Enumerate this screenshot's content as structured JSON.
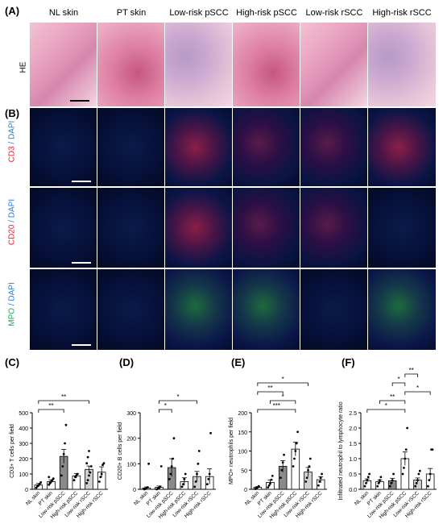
{
  "panels": {
    "A": "(A)",
    "B": "(B)",
    "C": "(C)",
    "D": "(D)",
    "E": "(E)",
    "F": "(F)"
  },
  "columns": [
    "NL skin",
    "PT skin",
    "Low-risk pSCC",
    "High-risk pSCC",
    "Low-risk rSCC",
    "High-risk rSCC"
  ],
  "row_labels": {
    "he": "HE",
    "cd3_a": "CD3",
    "cd3_b": " / DAPI",
    "cd20_a": "CD20",
    "cd20_b": " / DAPI",
    "mpo_a": "MPO",
    "mpo_b": " / DAPI"
  },
  "colors": {
    "cd3": "#e0202a",
    "cd20": "#e0202a",
    "mpo": "#1aa54a",
    "dapi": "#2a78d8",
    "bar_light": "#ffffff",
    "bar_mid": "#cfcfcf",
    "bar_dark": "#8a8a8a"
  },
  "chart_data": [
    {
      "type": "bar",
      "panel": "C",
      "ylabel": "CD3+ T cells per field",
      "categories": [
        "NL skin",
        "PT skin",
        "Low-risk pSCC",
        "High-risk pSCC",
        "Low-risk rSCC",
        "High-risk rSCC"
      ],
      "values": [
        28,
        50,
        215,
        88,
        130,
        112
      ],
      "errors": [
        10,
        12,
        45,
        15,
        22,
        35
      ],
      "ylim": [
        0,
        500
      ],
      "yticks": [
        0,
        100,
        200,
        300,
        400,
        500
      ],
      "points": [
        [
          10,
          20,
          25,
          35,
          45
        ],
        [
          30,
          40,
          50,
          60,
          70,
          80,
          45
        ],
        [
          90,
          150,
          230,
          300,
          420
        ],
        [
          60,
          80,
          90,
          100
        ],
        [
          40,
          60,
          90,
          110,
          150,
          170,
          210,
          250
        ],
        [
          50,
          80,
          100,
          160,
          170
        ]
      ],
      "significance": [
        {
          "from": 0,
          "to": 2,
          "label": "**"
        },
        {
          "from": 0,
          "to": 4,
          "label": "**"
        }
      ]
    },
    {
      "type": "bar",
      "panel": "D",
      "ylabel": "CD20+ B cells per field",
      "categories": [
        "NL skin",
        "PT skin",
        "Low-risk pSCC",
        "High-risk pSCC",
        "Low-risk rSCC",
        "High-risk rSCC"
      ],
      "values": [
        5,
        8,
        85,
        30,
        50,
        50
      ],
      "errors": [
        4,
        5,
        35,
        15,
        20,
        30
      ],
      "ylim": [
        0,
        300
      ],
      "yticks": [
        0,
        100,
        200,
        300
      ],
      "points": [
        [
          0,
          2,
          5,
          8,
          100
        ],
        [
          0,
          3,
          5,
          10,
          90
        ],
        [
          40,
          60,
          90,
          120,
          200
        ],
        [
          10,
          20,
          40,
          60
        ],
        [
          10,
          30,
          60,
          100,
          150
        ],
        [
          20,
          40,
          60,
          220
        ]
      ],
      "significance": [
        {
          "from": 1,
          "to": 2,
          "label": "*"
        },
        {
          "from": 1,
          "to": 4,
          "label": "*"
        }
      ]
    },
    {
      "type": "bar",
      "panel": "E",
      "ylabel": "MPO+ neutrophils per field",
      "categories": [
        "NL skin",
        "PT skin",
        "Low-risk pSCC",
        "High-risk pSCC",
        "Low-risk rSCC",
        "High-risk rSCC"
      ],
      "values": [
        5,
        18,
        60,
        105,
        45,
        25
      ],
      "errors": [
        2,
        6,
        15,
        18,
        12,
        8
      ],
      "ylim": [
        0,
        200
      ],
      "yticks": [
        0,
        50,
        100,
        150,
        200
      ],
      "points": [
        [
          1,
          3,
          5,
          8
        ],
        [
          5,
          10,
          15,
          25,
          35
        ],
        [
          30,
          50,
          70,
          90
        ],
        [
          60,
          80,
          100,
          120,
          150
        ],
        [
          20,
          30,
          50,
          60,
          80
        ],
        [
          10,
          20,
          30,
          40
        ]
      ],
      "significance": [
        {
          "from": 0,
          "to": 3,
          "label": "***"
        },
        {
          "from": 1,
          "to": 3,
          "label": "*"
        },
        {
          "from": 0,
          "to": 2,
          "label": "**"
        },
        {
          "from": 0,
          "to": 4,
          "label": "*"
        }
      ]
    },
    {
      "type": "bar",
      "panel": "F",
      "ylabel": "Infiltrated neutrophil to lymphocyte ratio",
      "categories": [
        "NL skin",
        "PT skin",
        "Low-risk pSCC",
        "High-risk pSCC",
        "Low-risk rSCC",
        "High-risk rSCC"
      ],
      "values": [
        0.28,
        0.25,
        0.28,
        1.0,
        0.3,
        0.5
      ],
      "errors": [
        0.06,
        0.05,
        0.08,
        0.22,
        0.07,
        0.18
      ],
      "ylim": [
        0,
        2.5
      ],
      "yticks": [
        0.0,
        0.5,
        1.0,
        1.5,
        2.0,
        2.5
      ],
      "points": [
        [
          0.1,
          0.2,
          0.3,
          0.4,
          0.5
        ],
        [
          0.1,
          0.2,
          0.3,
          0.4
        ],
        [
          0.1,
          0.2,
          0.3,
          0.5
        ],
        [
          0.5,
          0.7,
          1.0,
          1.3,
          2.0
        ],
        [
          0.1,
          0.2,
          0.3,
          0.5,
          0.6
        ],
        [
          0.1,
          0.3,
          0.5,
          1.3,
          1.3
        ]
      ],
      "significance": [
        {
          "from": 0,
          "to": 3,
          "label": "*"
        },
        {
          "from": 1,
          "to": 3,
          "label": "**"
        },
        {
          "from": 3,
          "to": 5,
          "label": "*"
        },
        {
          "from": 2,
          "to": 3,
          "label": "*"
        },
        {
          "from": 3,
          "to": 4,
          "label": "**"
        }
      ]
    }
  ]
}
